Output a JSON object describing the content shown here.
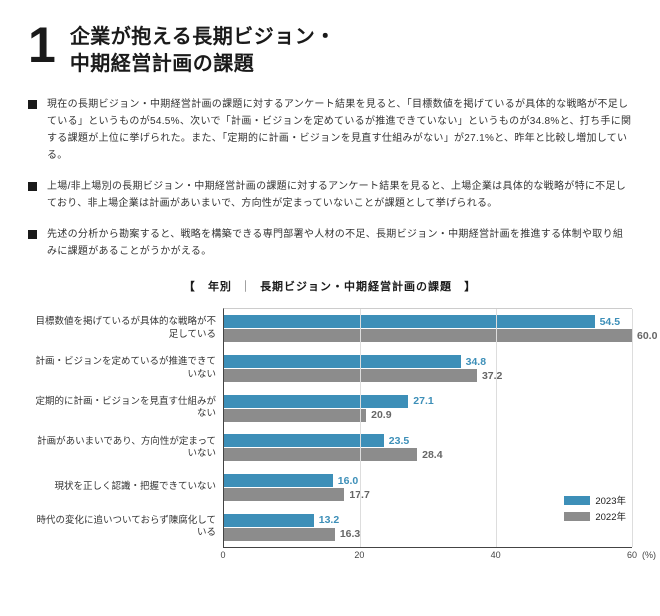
{
  "section_number": "1",
  "title_line1": "企業が抱える長期ビジョン・",
  "title_line2": "中期経営計画の課題",
  "bullets": [
    "現在の長期ビジョン・中期経営計画の課題に対するアンケート結果を見ると、「目標数値を掲げているが具体的な戦略が不足している」というものが54.5%、次いで「計画・ビジョンを定めているが推進できていない」というものが34.8%と、打ち手に関する課題が上位に挙げられた。また、「定期的に計画・ビジョンを見直す仕組みがない」が27.1%と、昨年と比較し増加している。",
    "上場/非上場別の長期ビジョン・中期経営計画の課題に対するアンケート結果を見ると、上場企業は具体的な戦略が特に不足しており、非上場企業は計画があいまいで、方向性が定まっていないことが課題として挙げられる。",
    "先述の分析から勘案すると、戦略を構築できる専門部署や人材の不足、長期ビジョン・中期経営計画を推進する体制や取り組みに課題があることがうかがえる。"
  ],
  "chart": {
    "title_l": "【",
    "title_year": "年別",
    "title_divider": "｜",
    "title_main": "長期ビジョン・中期経営計画の課題",
    "title_r": "】",
    "type": "grouped_horizontal_bar",
    "xlim": [
      0,
      60
    ],
    "xtick_step": 20,
    "xticks": [
      0,
      20,
      40,
      60
    ],
    "x_unit": "(%)",
    "colors": {
      "series_a": "#3d8fb8",
      "series_b": "#8c8c8c",
      "grid": "#dddddd",
      "axis": "#444444"
    },
    "value_color_a": "#3d8fb8",
    "value_color_b": "#666666",
    "legend": [
      {
        "label": "2023年",
        "color": "#3d8fb8"
      },
      {
        "label": "2022年",
        "color": "#8c8c8c"
      }
    ],
    "categories": [
      {
        "label": "目標数値を掲げているが具体的な戦略が不足している",
        "a": 54.5,
        "b": 60.0
      },
      {
        "label": "計画・ビジョンを定めているが推進できていない",
        "a": 34.8,
        "b": 37.2
      },
      {
        "label": "定期的に計画・ビジョンを見直す仕組みがない",
        "a": 27.1,
        "b": 20.9
      },
      {
        "label": "計画があいまいであり、方向性が定まっていない",
        "a": 23.5,
        "b": 28.4
      },
      {
        "label": "現状を正しく認識・把握できていない",
        "a": 16.0,
        "b": 17.7
      },
      {
        "label": "時代の変化に追いついておらず陳腐化している",
        "a": 13.2,
        "b": 16.3
      }
    ]
  }
}
